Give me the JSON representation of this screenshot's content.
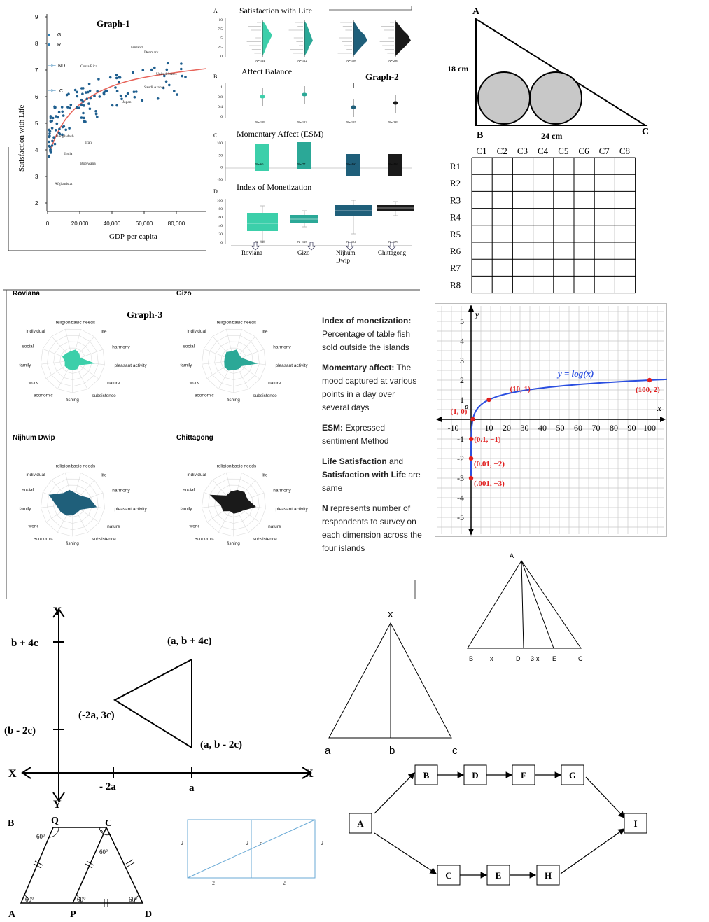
{
  "graph1": {
    "title": "Graph-1",
    "ylabel": "Satisfaction with Life",
    "xlabel": "GDP-per capita",
    "yticks": [
      "9",
      "8",
      "7",
      "6",
      "5",
      "4",
      "3",
      "2"
    ],
    "xticks": [
      "0",
      "20,000",
      "40,000",
      "60,000",
      "80,000"
    ],
    "legend": [
      {
        "sym": "■",
        "lab": "G"
      },
      {
        "sym": "■",
        "lab": "R"
      },
      {
        "sym": "⊣⊢",
        "lab": "ND"
      },
      {
        "sym": "⊣⊢",
        "lab": "C"
      }
    ],
    "labels": {
      "finland": "Finland",
      "denmark": "Denmark",
      "costa_rica": "Costa Rica",
      "us": "United States",
      "saudi": "Saudi Arabia",
      "japan": "Japan",
      "bangladesh": "Bangladesh",
      "iran": "Iran",
      "india": "India",
      "botswana": "Botswana",
      "afghanistan": "Afghanistan"
    }
  },
  "graph2": {
    "title": "Graph-2",
    "panelA": {
      "letter": "A",
      "title": "Satisfaction with Life",
      "yticks": [
        "10",
        "7.5",
        "5",
        "2.5",
        "0"
      ],
      "n": [
        "N= 114",
        "N= 122",
        "N= 198",
        "N= 236"
      ]
    },
    "panelB": {
      "letter": "B",
      "title": "Affect Balance",
      "yticks": [
        "1",
        "0.8",
        "0.4",
        "0"
      ],
      "n": [
        "N= 119",
        "N= 122",
        "N= 197",
        "N= 239"
      ]
    },
    "panelC": {
      "letter": "C",
      "title": "Momentary Affect (ESM)",
      "yticks": [
        "100",
        "50",
        "0",
        "-50"
      ],
      "n": [
        "N= 60",
        "N= 77",
        "N= 460",
        "N= 426"
      ]
    },
    "panelD": {
      "letter": "D",
      "title": "Index of Monetization",
      "yticks": [
        "100",
        "80",
        "60",
        "40",
        "20",
        "0"
      ],
      "n": [
        "N= 120",
        "N= 115",
        "N= 154",
        "N= 179"
      ]
    },
    "islands": [
      "Roviana",
      "Gizo",
      "Nijhum Dwip",
      "Chittagong"
    ],
    "colors": [
      "#3ccfaa",
      "#2ba897",
      "#1f5f7a",
      "#1a1a1a"
    ]
  },
  "triangle_circles": {
    "A": "A",
    "B": "B",
    "C": "C",
    "side_ab": "18 cm",
    "side_bc": "24 cm"
  },
  "grid_table": {
    "cols": [
      "C1",
      "C2",
      "C3",
      "C4",
      "C5",
      "C6",
      "C7",
      "C8"
    ],
    "rows": [
      "R1",
      "R2",
      "R3",
      "R4",
      "R5",
      "R6",
      "R7",
      "R8"
    ]
  },
  "log_graph": {
    "ylabel": "y",
    "xlabel": "x",
    "curve_label": "y = log(x)",
    "origin": "o",
    "yticks_pos": [
      "5",
      "4",
      "3",
      "2",
      "1"
    ],
    "yticks_neg": [
      "-1",
      "-2",
      "-3",
      "-4",
      "-5"
    ],
    "xticks": [
      "-10",
      "10",
      "20",
      "30",
      "40",
      "50",
      "60",
      "70",
      "80",
      "90",
      "100"
    ],
    "points": [
      "(1, 0)",
      "(10, 1)",
      "(100, 2)",
      "(0.1, −1)",
      "(0.01, −2)",
      "(.001, −3)"
    ]
  },
  "graph3": {
    "title": "Graph-3",
    "islands": [
      "Roviana",
      "Gizo",
      "Nijhum Dwip",
      "Chittagong"
    ],
    "axes": [
      "basic needs",
      "life",
      "harmony",
      "pleasant activity",
      "nature",
      "subsistence",
      "fishing",
      "economic",
      "work",
      "family",
      "social",
      "individual",
      "religion"
    ],
    "side_text": [
      {
        "head": "Index of monetization:",
        "body": " Percentage of table fish sold outside the islands"
      },
      {
        "head": "Momentary affect:",
        "body": " The mood captured at various points in a day over several days"
      },
      {
        "head": "ESM:",
        "body": " Expressed sentiment Method"
      },
      {
        "head": "Life Satisfaction",
        "body": " and ",
        "head2": "Satisfaction with Life",
        "body2": " are same"
      },
      {
        "head": "N",
        "body": " represents number of respondents to survey on each dimension across the four islands"
      }
    ]
  },
  "coord_triangle": {
    "Y": "Y",
    "Yb": "Y",
    "X": "X",
    "Xr": "X",
    "ytick1": "b + 4c",
    "ytick2": "(b - 2c)",
    "xtick1": "- 2a",
    "xtick2": "a",
    "p1": "(a, b + 4c)",
    "p2": "(-2a, 3c)",
    "p3": "(a, b - 2c)"
  },
  "triangle_x": {
    "apex": "x",
    "a": "a",
    "b": "b",
    "c": "c"
  },
  "triangle_abc": {
    "A": "A",
    "B": "B",
    "x": "x",
    "D": "D",
    "d3x": "3-x",
    "E": "E",
    "C": "C"
  },
  "flow": {
    "nodes": [
      "A",
      "B",
      "D",
      "F",
      "G",
      "I",
      "C",
      "E",
      "H"
    ]
  },
  "trapezoid": {
    "B": "B",
    "Q": "Q",
    "C": "C",
    "A": "A",
    "P": "P",
    "D": "D",
    "angle": "60°"
  },
  "rect_fig": {
    "l1": "2",
    "l2": "2",
    "l3": "2",
    "l4": "2",
    "l5": "2",
    "r": "r"
  }
}
